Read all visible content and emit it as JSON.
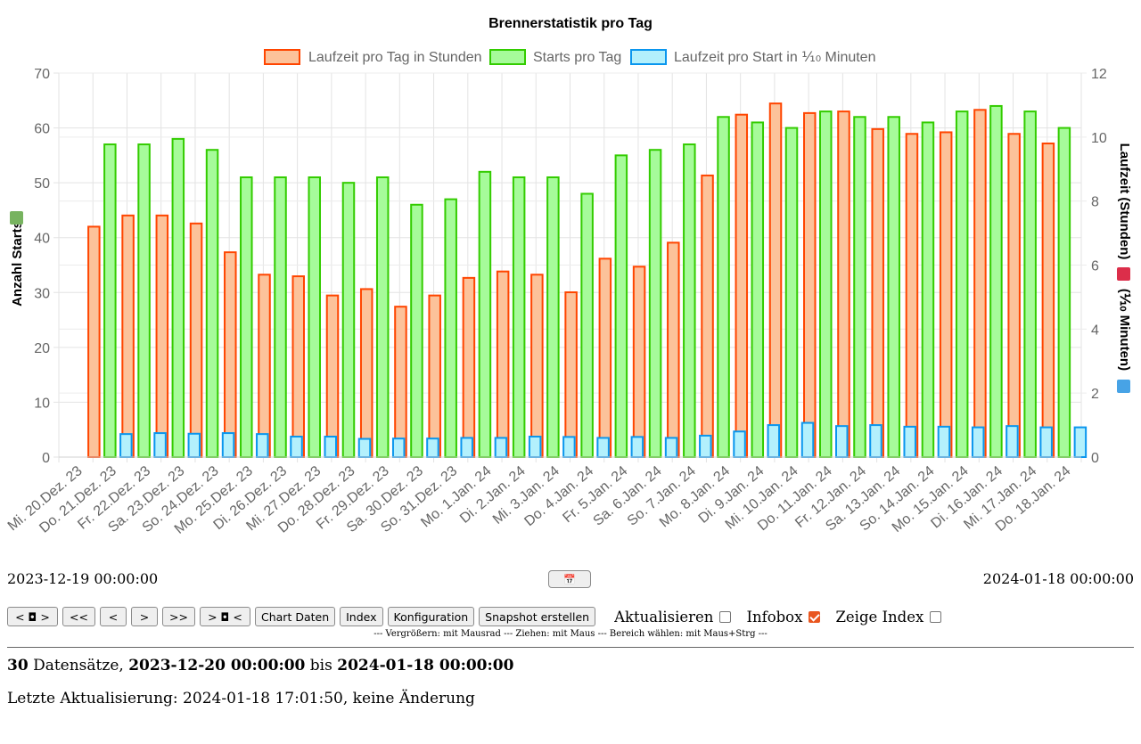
{
  "chart_data": {
    "type": "bar",
    "title": "Brennerstatistik pro Tag",
    "categories": [
      "Mi. 20.Dez. 23",
      "Do. 21.Dez. 23",
      "Fr. 22.Dez. 23",
      "Sa. 23.Dez. 23",
      "So. 24.Dez. 23",
      "Mo. 25.Dez. 23",
      "Di. 26.Dez. 23",
      "Mi. 27.Dez. 23",
      "Do. 28.Dez. 23",
      "Fr. 29.Dez. 23",
      "Sa. 30.Dez. 23",
      "So. 31.Dez. 23",
      "Mo. 1.Jan. 24",
      "Di. 2.Jan. 24",
      "Mi. 3.Jan. 24",
      "Do. 4.Jan. 24",
      "Fr. 5.Jan. 24",
      "Sa. 6.Jan. 24",
      "So. 7.Jan. 24",
      "Mo. 8.Jan. 24",
      "Di. 9.Jan. 24",
      "Mi. 10.Jan. 24",
      "Do. 11.Jan. 24",
      "Fr. 12.Jan. 24",
      "Sa. 13.Jan. 24",
      "So. 14.Jan. 24",
      "Mo. 15.Jan. 24",
      "Di. 16.Jan. 24",
      "Mi. 17.Jan. 24",
      "Do. 18.Jan. 24"
    ],
    "series": [
      {
        "name": "Laufzeit pro Tag in Stunden",
        "axis": "right",
        "color": "#ff4500",
        "fill": "#fcc29a",
        "values": [
          null,
          7.2,
          7.55,
          7.55,
          7.3,
          6.4,
          5.7,
          5.65,
          5.05,
          5.25,
          4.7,
          5.05,
          5.6,
          5.8,
          5.7,
          5.15,
          6.2,
          5.95,
          6.7,
          8.8,
          10.7,
          11.05,
          10.75,
          10.8,
          10.25,
          10.1,
          10.15,
          10.85,
          10.1,
          9.8
        ]
      },
      {
        "name": "Starts pro Tag",
        "axis": "left",
        "color": "#33cc00",
        "fill": "#a6fb9a",
        "values": [
          null,
          57,
          57,
          58,
          56,
          51,
          51,
          51,
          50,
          51,
          46,
          47,
          52,
          51,
          51,
          48,
          55,
          56,
          57,
          62,
          61,
          60,
          63,
          62,
          62,
          61,
          63,
          64,
          63,
          60
        ]
      },
      {
        "name": "Laufzeit pro Start in ⅒ Minuten",
        "axis": "right",
        "color": "#0a96ee",
        "fill": "#b3f0fc",
        "values": [
          null,
          0.72,
          0.75,
          0.73,
          0.75,
          0.72,
          0.64,
          0.64,
          0.57,
          0.58,
          0.58,
          0.6,
          0.6,
          0.64,
          0.63,
          0.6,
          0.63,
          0.6,
          0.67,
          0.8,
          1.0,
          1.07,
          0.97,
          1.0,
          0.95,
          0.95,
          0.93,
          0.97,
          0.93,
          0.93
        ]
      }
    ],
    "y_left": {
      "label": "Anzahl Starts",
      "min": 0,
      "max": 70,
      "ticks": [
        0,
        10,
        20,
        30,
        40,
        50,
        60,
        70
      ],
      "icon_color": "#77b35f"
    },
    "y_right": {
      "label_parts": [
        "Laufzeit (Stunden)",
        "(⅒ Minuten)"
      ],
      "min": 0,
      "max": 12,
      "ticks": [
        0,
        2,
        4,
        6,
        8,
        10,
        12
      ],
      "icon_colors": [
        "#dc2e4a",
        "#47a3e6"
      ]
    },
    "grid": true,
    "legend": "top"
  },
  "range": {
    "start": "2023-12-19 00:00:00",
    "end": "2024-01-18 00:00:00",
    "calendar_icon": "calendar-icon",
    "calendar_glyph": "📅"
  },
  "toolbar": {
    "buttons": [
      {
        "name": "zoom-out-button",
        "label": "< ◘ >"
      },
      {
        "name": "first-button",
        "label": "<<"
      },
      {
        "name": "prev-button",
        "label": "<"
      },
      {
        "name": "next-button",
        "label": ">"
      },
      {
        "name": "last-button",
        "label": ">>"
      },
      {
        "name": "zoom-in-button",
        "label": "> ◘ <"
      },
      {
        "name": "chart-data-button",
        "label": "Chart Daten"
      },
      {
        "name": "index-button",
        "label": "Index"
      },
      {
        "name": "config-button",
        "label": "Konfiguration"
      },
      {
        "name": "snapshot-button",
        "label": "Snapshot erstellen"
      }
    ],
    "checkboxes": [
      {
        "name": "refresh-checkbox",
        "label": "Aktualisieren",
        "checked": false
      },
      {
        "name": "infobox-checkbox",
        "label": "Infobox",
        "checked": true
      },
      {
        "name": "show-index-checkbox",
        "label": "Zeige Index",
        "checked": false
      }
    ],
    "accent_color": "#e9561f",
    "hint": "--- Vergrößern: mit Mausrad --- Ziehen: mit Maus --- Bereich wählen: mit Maus+Strg ---"
  },
  "summary": {
    "count": "30",
    "count_label": " Datensätze, ",
    "from": "2023-12-20 00:00:00",
    "to_label": " bis ",
    "to": "2024-01-18 00:00:00"
  },
  "updated": "Letzte Aktualisierung: 2024-01-18 17:01:50, keine Änderung"
}
